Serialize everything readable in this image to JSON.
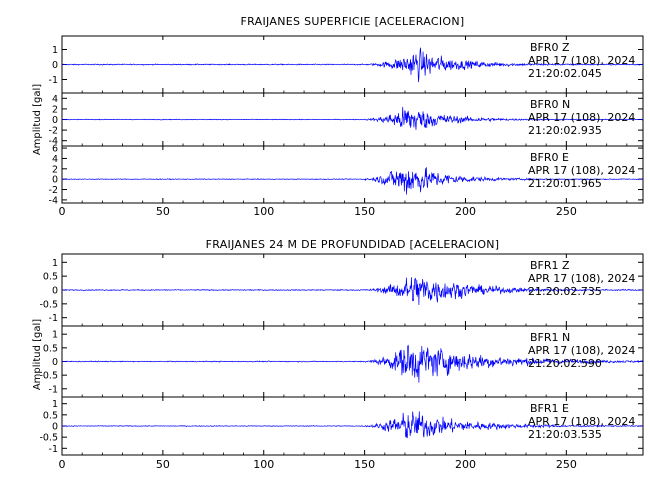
{
  "colors": {
    "trace": "#0000ff",
    "axis": "#000000",
    "background": "#ffffff"
  },
  "chart_data": [
    {
      "type": "line",
      "title": "FRAIJANES SUPERFICIE [ACELERACION]",
      "ylabel": "Amplitud [gal]",
      "xlim": [
        0,
        288
      ],
      "xticks": [
        0,
        50,
        100,
        150,
        200,
        250
      ],
      "panels": [
        {
          "station": "BFR0",
          "component": "Z",
          "date": "APR 17 (108), 2024",
          "time": "21:20:02.045",
          "ylim": [
            -1.9,
            1.9
          ],
          "yticks": [
            -1,
            0,
            1
          ],
          "onset": 148,
          "peak_time": 176,
          "peak_amplitude": 1.6,
          "noise_level": 0.03,
          "decay": 18
        },
        {
          "station": "BFR0",
          "component": "N",
          "date": "APR 17 (108), 2024",
          "time": "21:20:02.935",
          "ylim": [
            -5,
            5
          ],
          "yticks": [
            -4,
            -2,
            0,
            2,
            4
          ],
          "onset": 147,
          "peak_time": 172,
          "peak_amplitude": 4.6,
          "noise_level": 0.06,
          "decay": 16
        },
        {
          "station": "BFR0",
          "component": "E",
          "date": "APR 17 (108), 2024",
          "time": "21:20:01.965",
          "ylim": [
            -4.6,
            6.4
          ],
          "yticks": [
            -4,
            -2,
            0,
            2,
            4,
            6
          ],
          "onset": 146,
          "peak_time": 171,
          "peak_amplitude": 5.8,
          "noise_level": 0.06,
          "decay": 16
        }
      ]
    },
    {
      "type": "line",
      "title": "FRAIJANES 24 M DE PROFUNDIDAD [ACELERACION]",
      "ylabel": "Amplitud [gal]",
      "xlim": [
        0,
        288
      ],
      "xticks": [
        0,
        50,
        100,
        150,
        200,
        250
      ],
      "panels": [
        {
          "station": "BFR1",
          "component": "Z",
          "date": "APR 17 (108), 2024",
          "time": "21:20:02.735",
          "ylim": [
            -1.3,
            1.3
          ],
          "yticks": [
            -1.0,
            -0.5,
            0.0,
            0.5,
            1.0
          ],
          "onset": 147,
          "peak_time": 176,
          "peak_amplitude": 1.05,
          "noise_level": 0.015,
          "decay": 22
        },
        {
          "station": "BFR1",
          "component": "N",
          "date": "APR 17 (108), 2024",
          "time": "21:20:02.590",
          "ylim": [
            -1.3,
            1.3
          ],
          "yticks": [
            -1.0,
            -0.5,
            0.0,
            0.5,
            1.0
          ],
          "onset": 147,
          "peak_time": 173,
          "peak_amplitude": 1.25,
          "noise_level": 0.015,
          "decay": 30
        },
        {
          "station": "BFR1",
          "component": "E",
          "date": "APR 17 (108), 2024",
          "time": "21:20:03.535",
          "ylim": [
            -1.3,
            1.3
          ],
          "yticks": [
            -1.0,
            -0.5,
            0.0,
            0.5,
            1.0
          ],
          "onset": 146,
          "peak_time": 172,
          "peak_amplitude": 1.15,
          "noise_level": 0.015,
          "decay": 24
        }
      ]
    }
  ]
}
